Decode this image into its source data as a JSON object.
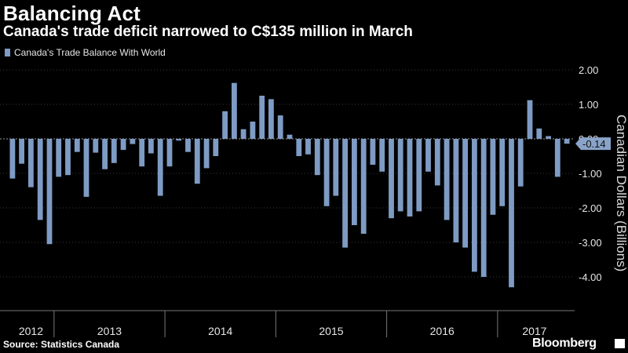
{
  "header": {
    "title": "Balancing Act",
    "subtitle": "Canada's trade deficit narrowed to C$135 million in March"
  },
  "legend": {
    "label": "Canada's Trade Balance With World"
  },
  "footer": {
    "source": "Source: Statistics Canada",
    "brand": "Bloomberg"
  },
  "colors": {
    "bar": "#7e9bc4",
    "background": "#000000",
    "gridline": "#3a3a3a",
    "callout": "#8aa4c9"
  },
  "chart_data": {
    "type": "bar",
    "ylabel": "Canadian Dollars (Billions)",
    "ylim": [
      -4.5,
      2.3
    ],
    "y_ticks": [
      "2.00",
      "1.00",
      "0.00",
      "-1.00",
      "-2.00",
      "-3.00",
      "-4.00"
    ],
    "y_tick_values": [
      2,
      1,
      0,
      -1,
      -2,
      -3,
      -4
    ],
    "grid": "dotted horizontal",
    "legend_position": "top-left",
    "callout": "-0.14",
    "callout_value": -0.14,
    "year_labels": [
      "2012",
      "2013",
      "2014",
      "2015",
      "2016",
      "2017"
    ],
    "series": [
      {
        "name": "Canada's Trade Balance With World",
        "values": [
          -1.15,
          -0.72,
          -1.4,
          -2.35,
          -3.05,
          -1.1,
          -1.05,
          -0.38,
          -1.68,
          -0.4,
          -0.88,
          -0.7,
          -0.32,
          -0.15,
          -0.8,
          -0.42,
          -1.65,
          -0.8,
          -0.05,
          -0.38,
          -1.3,
          -0.85,
          -0.5,
          0.8,
          1.62,
          0.28,
          0.5,
          1.25,
          1.15,
          0.68,
          0.12,
          -0.5,
          -0.45,
          -1.05,
          -1.95,
          -1.65,
          -3.15,
          -2.5,
          -2.75,
          -0.75,
          -0.95,
          -2.3,
          -2.1,
          -2.25,
          -2.1,
          -0.95,
          -1.35,
          -2.35,
          -3.0,
          -3.15,
          -3.85,
          -4.0,
          -2.2,
          -1.95,
          -4.3,
          -1.38,
          1.12,
          0.3,
          0.08,
          -1.1,
          -0.14
        ]
      }
    ]
  }
}
